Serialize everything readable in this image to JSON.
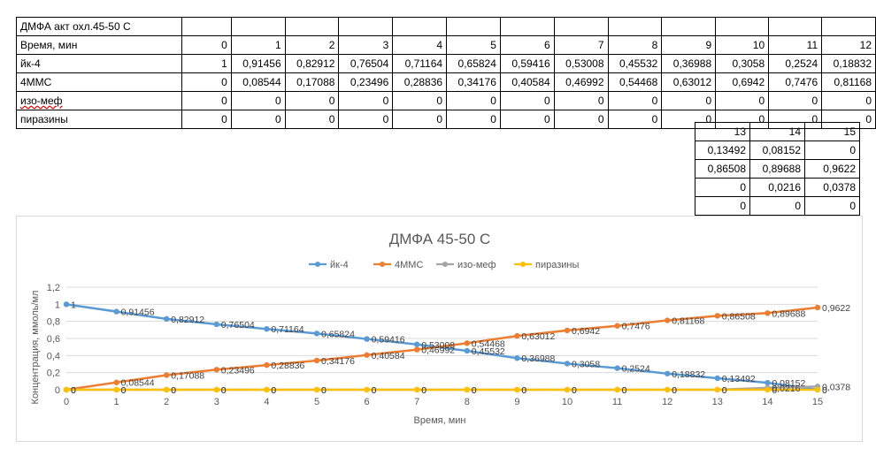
{
  "table": {
    "title": "ДМФА акт охл.45-50 С",
    "rows": [
      {
        "label": "Время, мин",
        "values": [
          "0",
          "1",
          "2",
          "3",
          "4",
          "5",
          "6",
          "7",
          "8",
          "9",
          "10",
          "11",
          "12"
        ]
      },
      {
        "label": "йк-4",
        "values": [
          "1",
          "0,91456",
          "0,82912",
          "0,76504",
          "0,71164",
          "0,65824",
          "0,59416",
          "0,53008",
          "0,45532",
          "0,36988",
          "0,3058",
          "0,2524",
          "0,18832"
        ]
      },
      {
        "label": "4ММС",
        "values": [
          "0",
          "0,08544",
          "0,17088",
          "0,23496",
          "0,28836",
          "0,34176",
          "0,40584",
          "0,46992",
          "0,54468",
          "0,63012",
          "0,6942",
          "0,7476",
          "0,81168"
        ]
      },
      {
        "label": "изо-меф",
        "values": [
          "0",
          "0",
          "0",
          "0",
          "0",
          "0",
          "0",
          "0",
          "0",
          "0",
          "0",
          "0",
          "0"
        ]
      },
      {
        "label": "пиразины",
        "values": [
          "0",
          "0",
          "0",
          "0",
          "0",
          "0",
          "0",
          "0",
          "0",
          "0",
          "0",
          "0",
          "0"
        ]
      }
    ],
    "ext_rows": [
      [
        "13",
        "14",
        "15"
      ],
      [
        "0,13492",
        "0,08152",
        "0"
      ],
      [
        "0,86508",
        "0,89688",
        "0,9622"
      ],
      [
        "0",
        "0,0216",
        "0,0378"
      ],
      [
        "0",
        "0",
        "0"
      ]
    ]
  },
  "chart_data": {
    "type": "line",
    "title": "ДМФА 45-50 С",
    "xlabel": "Время, мин",
    "ylabel": "Концентрация, ммоль/мл",
    "x": [
      0,
      1,
      2,
      3,
      4,
      5,
      6,
      7,
      8,
      9,
      10,
      11,
      12,
      13,
      14,
      15
    ],
    "xlim": [
      0,
      15
    ],
    "ylim": [
      0,
      1.2
    ],
    "yticks": [
      "0",
      "0,2",
      "0,4",
      "0,6",
      "0,8",
      "1",
      "1,2"
    ],
    "xticks": [
      "0",
      "1",
      "2",
      "3",
      "4",
      "5",
      "6",
      "7",
      "8",
      "9",
      "10",
      "11",
      "12",
      "13",
      "14",
      "15"
    ],
    "grid": true,
    "legend": "top",
    "series": [
      {
        "name": "йк-4",
        "color": "#5b9bd5",
        "values": [
          1,
          0.91456,
          0.82912,
          0.76504,
          0.71164,
          0.65824,
          0.59416,
          0.53008,
          0.45532,
          0.36988,
          0.3058,
          0.2524,
          0.18832,
          0.13492,
          0.08152,
          0
        ],
        "labels": [
          "1",
          "0,91456",
          "0,82912",
          "0,76504",
          "0,71164",
          "0,65824",
          "0,59416",
          "0,53008",
          "0,45532",
          "0,36988",
          "0,3058",
          "0,2524",
          "0,18832",
          "0,13492",
          "0,08152",
          "0"
        ]
      },
      {
        "name": "4ММС",
        "color": "#ed7d31",
        "values": [
          0,
          0.08544,
          0.17088,
          0.23496,
          0.28836,
          0.34176,
          0.40584,
          0.46992,
          0.54468,
          0.63012,
          0.6942,
          0.7476,
          0.81168,
          0.86508,
          0.89688,
          0.9622
        ],
        "labels": [
          "0",
          "0,08544",
          "0,17088",
          "0,23496",
          "0,28836",
          "0,34176",
          "0,40584",
          "0,46992",
          "0,54468",
          "0,63012",
          "0,6942",
          "0,7476",
          "0,81168",
          "0,86508",
          "0,89688",
          "0,9622"
        ]
      },
      {
        "name": "изо-меф",
        "color": "#a5a5a5",
        "values": [
          0,
          0,
          0,
          0,
          0,
          0,
          0,
          0,
          0,
          0,
          0,
          0,
          0,
          0,
          0.0216,
          0.0378
        ],
        "labels": [
          "0",
          "0",
          "0",
          "0",
          "0",
          "0",
          "0",
          "0",
          "0",
          "0",
          "0",
          "0",
          "0",
          "0",
          "0,0216",
          "0,0378"
        ]
      },
      {
        "name": "пиразины",
        "color": "#ffc000",
        "values": [
          0,
          0,
          0,
          0,
          0,
          0,
          0,
          0,
          0,
          0,
          0,
          0,
          0,
          0,
          0,
          0
        ],
        "labels": [
          "0",
          "0",
          "0",
          "0",
          "0",
          "0",
          "0",
          "0",
          "0",
          "0",
          "0",
          "0",
          "0",
          "0",
          "0",
          "0"
        ]
      }
    ]
  }
}
